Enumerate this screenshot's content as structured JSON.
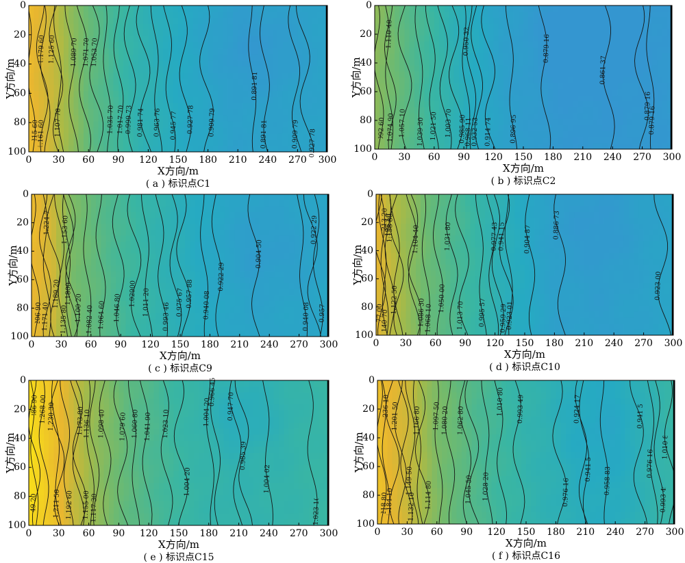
{
  "chart_data": [
    {
      "type": "heatmap",
      "caption": "( a ) 标识点C1",
      "xlabel": "X方向/m",
      "ylabel": "Y方向/m",
      "xlim": [
        0,
        300
      ],
      "ylim": [
        0,
        100
      ],
      "y_axis_inverted": true,
      "grid": false,
      "xticks": [
        0,
        30,
        60,
        90,
        120,
        150,
        180,
        210,
        240,
        270,
        300
      ],
      "yticks": [
        0,
        20,
        40,
        60,
        80,
        100
      ],
      "colormap": "parula",
      "value_range": [
        0.86,
        1.29
      ],
      "gradient": [
        [
          0,
          1.23
        ],
        [
          22,
          1.19
        ],
        [
          60,
          1.07
        ],
        [
          110,
          0.98
        ],
        [
          160,
          0.93
        ],
        [
          210,
          0.9
        ],
        [
          300,
          0.91
        ]
      ],
      "basin": {
        "x": 230,
        "y": 30,
        "rx": 50,
        "ry": 30,
        "depth": 0.03
      },
      "contours": [
        {
          "label": "1.215 60",
          "x": 4,
          "y": 88
        },
        {
          "label": "1.179 60",
          "x": 15,
          "y": 30
        },
        {
          "label": "1.161 60",
          "x": 16,
          "y": 88
        },
        {
          "label": "1.125 60",
          "x": 27,
          "y": 30
        },
        {
          "label": "1.107 70",
          "x": 32,
          "y": 80
        },
        {
          "label": "1.089 70",
          "x": 42,
          "y": 32
        },
        {
          "label": "1.071 70",
          "x": 54,
          "y": 32
        },
        {
          "label": "1.053 70",
          "x": 66,
          "y": 32
        },
        {
          "label": "1.035 70",
          "x": 80,
          "y": 78
        },
        {
          "label": "1.017 70",
          "x": 92,
          "y": 78
        },
        {
          "label": "0.999 73",
          "x": 104,
          "y": 78
        },
        {
          "label": "0.981 74",
          "x": 118,
          "y": 80
        },
        {
          "label": "0.963 76",
          "x": 130,
          "y": 80
        },
        {
          "label": "0.945 77",
          "x": 143,
          "y": 82
        },
        {
          "label": "0.927 78",
          "x": 158,
          "y": 78
        },
        {
          "label": "0.909 79",
          "x": 180,
          "y": 80
        },
        {
          "label": "0.891 81",
          "x": 225,
          "y": 55
        },
        {
          "label": "0.891 81",
          "x": 240,
          "y": 88
        },
        {
          "label": "0.909 79",
          "x": 270,
          "y": 88
        },
        {
          "label": "0.927 78",
          "x": 280,
          "y": 94
        }
      ]
    },
    {
      "type": "heatmap",
      "caption": "( b ) 标识点C2",
      "xlabel": "X方向/m",
      "ylabel": "Y方向/m",
      "xlim": [
        0,
        300
      ],
      "ylim": [
        0,
        100
      ],
      "y_axis_inverted": true,
      "grid": false,
      "xticks": [
        0,
        30,
        60,
        90,
        120,
        150,
        180,
        210,
        240,
        270,
        300
      ],
      "yticks": [
        0,
        20,
        40,
        60,
        80,
        100
      ],
      "colormap": "parula",
      "value_range": [
        0.86,
        1.29
      ],
      "gradient": [
        [
          0,
          1.12
        ],
        [
          30,
          1.06
        ],
        [
          80,
          0.97
        ],
        [
          130,
          0.9
        ],
        [
          180,
          0.87
        ],
        [
          230,
          0.865
        ],
        [
          300,
          0.87
        ]
      ],
      "basin": {
        "x": 215,
        "y": 25,
        "rx": 55,
        "ry": 35,
        "depth": 0.02
      },
      "contours": [
        {
          "label": "1.110 40",
          "x": 12,
          "y": 20
        },
        {
          "label": "1.092 60",
          "x": 6,
          "y": 88
        },
        {
          "label": "1.074 90",
          "x": 18,
          "y": 85
        },
        {
          "label": "1.057 10",
          "x": 33,
          "y": 82
        },
        {
          "label": "1.039 30",
          "x": 48,
          "y": 88
        },
        {
          "label": "1.021 50",
          "x": 60,
          "y": 84
        },
        {
          "label": "1.003 70",
          "x": 72,
          "y": 82
        },
        {
          "label": "0.985 90",
          "x": 83,
          "y": 86
        },
        {
          "label": "0.968 11",
          "x": 94,
          "y": 88
        },
        {
          "label": "0.950 32",
          "x": 96,
          "y": 25
        },
        {
          "label": "0.932 53",
          "x": 106,
          "y": 88
        },
        {
          "label": "0.914 74",
          "x": 118,
          "y": 88
        },
        {
          "label": "0.896 95",
          "x": 140,
          "y": 86
        },
        {
          "label": "0.879 16",
          "x": 170,
          "y": 30
        },
        {
          "label": "0.861 37",
          "x": 235,
          "y": 45
        },
        {
          "label": "0.879 16",
          "x": 270,
          "y": 70
        },
        {
          "label": "0.879 16",
          "x": 280,
          "y": 80
        }
      ]
    },
    {
      "type": "heatmap",
      "caption": "( c ) 标识点C9",
      "xlabel": "X方向/m",
      "ylabel": "Y方向/m",
      "xlim": [
        0,
        300
      ],
      "ylim": [
        0,
        100
      ],
      "y_axis_inverted": true,
      "grid": false,
      "xticks": [
        0,
        30,
        60,
        90,
        120,
        150,
        180,
        210,
        240,
        270,
        300
      ],
      "yticks": [
        0,
        20,
        40,
        60,
        80,
        100
      ],
      "colormap": "parula",
      "value_range": [
        0.86,
        1.29
      ],
      "gradient": [
        [
          0,
          1.23
        ],
        [
          22,
          1.19
        ],
        [
          40,
          1.1
        ],
        [
          80,
          1.04
        ],
        [
          130,
          0.98
        ],
        [
          170,
          0.94
        ],
        [
          220,
          0.91
        ],
        [
          300,
          0.92
        ]
      ],
      "basin": {
        "x": 240,
        "y": 40,
        "rx": 55,
        "ry": 30,
        "depth": 0.025
      },
      "contours": [
        {
          "label": "1.224 7",
          "x": 13,
          "y": 20
        },
        {
          "label": "1.206 90",
          "x": 5,
          "y": 86
        },
        {
          "label": "1.171 40",
          "x": 16,
          "y": 86
        },
        {
          "label": "1.189 20",
          "x": 24,
          "y": 70
        },
        {
          "label": "1.153 60",
          "x": 35,
          "y": 25
        },
        {
          "label": "1.135 80",
          "x": 32,
          "y": 88
        },
        {
          "label": "1.1800",
          "x": 40,
          "y": 70
        },
        {
          "label": "1.100 20",
          "x": 42,
          "y": 80
        },
        {
          "label": "1.082 40",
          "x": 58,
          "y": 88
        },
        {
          "label": "1.064 60",
          "x": 72,
          "y": 85
        },
        {
          "label": "1.046 80",
          "x": 90,
          "y": 80
        },
        {
          "label": "1.02900",
          "x": 106,
          "y": 70
        },
        {
          "label": "1.011 20",
          "x": 118,
          "y": 76
        },
        {
          "label": "0.993 46",
          "x": 133,
          "y": 86
        },
        {
          "label": "0.975 67",
          "x": 146,
          "y": 76
        },
        {
          "label": "0.957 88",
          "x": 154,
          "y": 70
        },
        {
          "label": "0.940 08",
          "x": 176,
          "y": 78
        },
        {
          "label": "0.922 29",
          "x": 188,
          "y": 58
        },
        {
          "label": "0.904 50",
          "x": 225,
          "y": 42
        },
        {
          "label": "0.922 29",
          "x": 282,
          "y": 25
        },
        {
          "label": "0.940 08",
          "x": 275,
          "y": 86
        },
        {
          "label": "0.957 88",
          "x": 290,
          "y": 80
        }
      ]
    },
    {
      "type": "heatmap",
      "caption": "( d ) 标识点C10",
      "xlabel": "X方向/m",
      "ylabel": "Y方向/m",
      "xlim": [
        0,
        300
      ],
      "ylim": [
        0,
        100
      ],
      "y_axis_inverted": true,
      "grid": false,
      "xticks": [
        0,
        30,
        60,
        90,
        120,
        150,
        180,
        210,
        240,
        270,
        300
      ],
      "yticks": [
        0,
        20,
        40,
        60,
        80,
        100
      ],
      "colormap": "parula",
      "value_range": [
        0.86,
        1.29
      ],
      "gradient": [
        [
          0,
          1.22
        ],
        [
          20,
          1.16
        ],
        [
          50,
          1.08
        ],
        [
          90,
          1.02
        ],
        [
          130,
          0.96
        ],
        [
          180,
          0.9
        ],
        [
          230,
          0.89
        ],
        [
          300,
          0.915
        ]
      ],
      "basin": {
        "x": 220,
        "y": 25,
        "rx": 50,
        "ry": 30,
        "depth": 0.02
      },
      "contours": [
        {
          "label": "1.213 20",
          "x": 6,
          "y": 20
        },
        {
          "label": "1.195 10",
          "x": 12,
          "y": 24
        },
        {
          "label": "1.177 00",
          "x": 6,
          "y": 88
        },
        {
          "label": "1.158 80",
          "x": 20,
          "y": 24
        },
        {
          "label": "1.140 70",
          "x": 10,
          "y": 92
        },
        {
          "label": "1.122 50",
          "x": 22,
          "y": 75
        },
        {
          "label": "1.104 40",
          "x": 36,
          "y": 32
        },
        {
          "label": "1.086 30",
          "x": 40,
          "y": 84
        },
        {
          "label": "1.068 10",
          "x": 52,
          "y": 88
        },
        {
          "label": "1.050 00",
          "x": 64,
          "y": 74
        },
        {
          "label": "1.031 80",
          "x": 76,
          "y": 30
        },
        {
          "label": "1.013 70",
          "x": 90,
          "y": 86
        },
        {
          "label": "0.995 57",
          "x": 108,
          "y": 84
        },
        {
          "label": "0.977 43",
          "x": 116,
          "y": 30
        },
        {
          "label": "0.959 29",
          "x": 124,
          "y": 88
        },
        {
          "label": "0.941 15",
          "x": 130,
          "y": 30
        },
        {
          "label": "0.923 01",
          "x": 136,
          "y": 86
        },
        {
          "label": "0.904 87",
          "x": 155,
          "y": 32
        },
        {
          "label": "0.886 73",
          "x": 185,
          "y": 22
        },
        {
          "label": "0.923 00",
          "x": 290,
          "y": 65
        }
      ]
    },
    {
      "type": "heatmap",
      "caption": "( e ) 标识点C15",
      "xlabel": "X方向/m",
      "ylabel": "Y方向/m",
      "xlim": [
        0,
        300
      ],
      "ylim": [
        0,
        100
      ],
      "y_axis_inverted": true,
      "grid": false,
      "xticks": [
        0,
        30,
        60,
        90,
        120,
        150,
        180,
        210,
        240,
        270,
        300
      ],
      "yticks": [
        0,
        20,
        40,
        60,
        80,
        100
      ],
      "colormap": "parula",
      "value_range": [
        0.86,
        1.29
      ],
      "gradient": [
        [
          0,
          1.29
        ],
        [
          30,
          1.23
        ],
        [
          60,
          1.14
        ],
        [
          100,
          1.06
        ],
        [
          150,
          1.01
        ],
        [
          200,
          0.985
        ],
        [
          250,
          0.99
        ],
        [
          300,
          1.005
        ]
      ],
      "basin": {
        "x": 215,
        "y": 25,
        "rx": 40,
        "ry": 25,
        "depth": 0.035
      },
      "contours": [
        {
          "label": "1.286 90",
          "x": 3,
          "y": 20
        },
        {
          "label": "1.268 00",
          "x": 13,
          "y": 20
        },
        {
          "label": "1.249 20",
          "x": 8,
          "y": 88
        },
        {
          "label": "1.230 30",
          "x": 28,
          "y": 25
        },
        {
          "label": "1.211 50",
          "x": 30,
          "y": 85
        },
        {
          "label": "1.192 60",
          "x": 40,
          "y": 86
        },
        {
          "label": "1.173 80",
          "x": 47,
          "y": 28
        },
        {
          "label": "1.155 00",
          "x": 52,
          "y": 86
        },
        {
          "label": "1.136 10",
          "x": 60,
          "y": 30
        },
        {
          "label": "1.117 30",
          "x": 68,
          "y": 88
        },
        {
          "label": "1.098 40",
          "x": 76,
          "y": 30
        },
        {
          "label": "1.079 60",
          "x": 92,
          "y": 32
        },
        {
          "label": "1.060 80",
          "x": 104,
          "y": 30
        },
        {
          "label": "1.041 90",
          "x": 116,
          "y": 32
        },
        {
          "label": "1.023 10",
          "x": 136,
          "y": 30
        },
        {
          "label": "1.004 20",
          "x": 153,
          "y": 70
        },
        {
          "label": "1.004 20",
          "x": 180,
          "y": 22
        },
        {
          "label": "0.966 45",
          "x": 185,
          "y": 8
        },
        {
          "label": "0.947 70",
          "x": 206,
          "y": 18
        },
        {
          "label": "0.985 39",
          "x": 215,
          "y": 52
        },
        {
          "label": "1.004 02",
          "x": 240,
          "y": 68
        },
        {
          "label": "1.023 10",
          "x": 285,
          "y": 90
        }
      ]
    },
    {
      "type": "heatmap",
      "caption": "( f ) 标识点C16",
      "xlabel": "X方向/m",
      "ylabel": "Y方向/m",
      "xlim": [
        0,
        300
      ],
      "ylim": [
        0,
        100
      ],
      "y_axis_inverted": true,
      "grid": false,
      "xticks": [
        0,
        30,
        60,
        90,
        120,
        150,
        180,
        210,
        240,
        270,
        300
      ],
      "yticks": [
        0,
        20,
        40,
        60,
        80,
        100
      ],
      "colormap": "parula",
      "value_range": [
        0.86,
        1.29
      ],
      "gradient": [
        [
          0,
          1.24
        ],
        [
          30,
          1.19
        ],
        [
          60,
          1.1
        ],
        [
          100,
          1.04
        ],
        [
          150,
          0.99
        ],
        [
          200,
          0.955
        ],
        [
          240,
          0.945
        ],
        [
          300,
          1.005
        ]
      ],
      "basin": {
        "x": 225,
        "y": 35,
        "rx": 45,
        "ry": 35,
        "depth": 0.02
      },
      "contours": [
        {
          "label": "1.236 10",
          "x": 6,
          "y": 20
        },
        {
          "label": "1.218 80",
          "x": 6,
          "y": 88
        },
        {
          "label": "1.201 50",
          "x": 22,
          "y": 25
        },
        {
          "label": "1.184 10",
          "x": 18,
          "y": 85
        },
        {
          "label": "1.166 80",
          "x": 40,
          "y": 28
        },
        {
          "label": "1.149 50",
          "x": 36,
          "y": 70
        },
        {
          "label": "1.132 10",
          "x": 30,
          "y": 88
        },
        {
          "label": "1.114 80",
          "x": 46,
          "y": 80
        },
        {
          "label": "1.097 50",
          "x": 60,
          "y": 25
        },
        {
          "label": "1.080 20",
          "x": 72,
          "y": 28
        },
        {
          "label": "1.062 80",
          "x": 88,
          "y": 28
        },
        {
          "label": "1.045 50",
          "x": 98,
          "y": 76
        },
        {
          "label": "1.028 20",
          "x": 112,
          "y": 74
        },
        {
          "label": "1.010 80",
          "x": 122,
          "y": 15
        },
        {
          "label": "0.993 49",
          "x": 140,
          "y": 20
        },
        {
          "label": "0.976 16",
          "x": 185,
          "y": 78
        },
        {
          "label": "0.958 83",
          "x": 230,
          "y": 70
        },
        {
          "label": "0.941 5",
          "x": 210,
          "y": 62
        },
        {
          "label": "0.924 17",
          "x": 205,
          "y": 20
        },
        {
          "label": "0.941 5",
          "x": 262,
          "y": 25
        },
        {
          "label": "0.976 16",
          "x": 278,
          "y": 58
        },
        {
          "label": "0.993 49",
          "x": 285,
          "y": 82
        },
        {
          "label": "1.010 80",
          "x": 295,
          "y": 45
        }
      ]
    }
  ]
}
